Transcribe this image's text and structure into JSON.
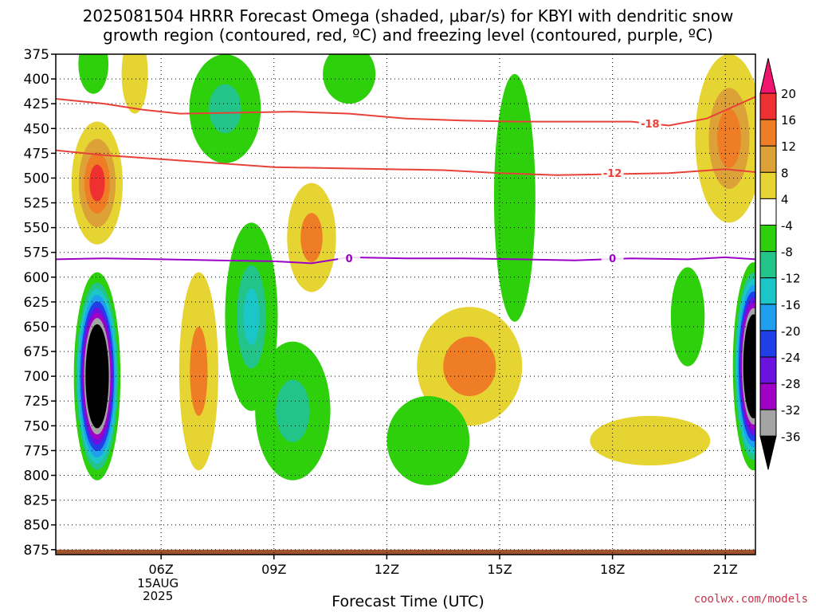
{
  "title": {
    "line1": "2025081504 HRRR Forecast Omega (shaded, μbar/s) for KBYI with dendritic snow",
    "line2": "growth region (contoured, red, ºC) and freezing level (contoured, purple, ºC)"
  },
  "credit": "coolwx.com/models",
  "chart_data": {
    "type": "heatmap",
    "title": "2025081504 HRRR Forecast Omega (shaded, μbar/s) for KBYI with dendritic snow growth region (contoured, red, ºC) and freezing level (contoured, purple, ºC)",
    "xlabel": "Forecast Time (UTC)",
    "ylabel": "",
    "x_range_hours_utc": [
      3.2,
      21.8
    ],
    "y_range_mb": [
      375,
      880
    ],
    "y_inverted": true,
    "grid": true,
    "y_ticks": [
      375,
      400,
      425,
      450,
      475,
      500,
      525,
      550,
      575,
      600,
      625,
      650,
      675,
      700,
      725,
      750,
      775,
      800,
      825,
      850,
      875
    ],
    "x_ticks": [
      {
        "hour": 6,
        "label": "06Z",
        "sub1": "15AUG",
        "sub2": "2025"
      },
      {
        "hour": 9,
        "label": "09Z"
      },
      {
        "hour": 12,
        "label": "12Z"
      },
      {
        "hour": 15,
        "label": "15Z"
      },
      {
        "hour": 18,
        "label": "18Z"
      },
      {
        "hour": 21,
        "label": "21Z"
      }
    ],
    "colorbar": {
      "labels": [
        "20",
        "16",
        "12",
        "8",
        "4",
        "-4",
        "-8",
        "-12",
        "-16",
        "-20",
        "-24",
        "-28",
        "-32",
        "-36"
      ],
      "bins": [
        {
          "from": 16,
          "to": 20,
          "color": "#ee3030"
        },
        {
          "from": 12,
          "to": 16,
          "color": "#ee7d25"
        },
        {
          "from": 8,
          "to": 12,
          "color": "#dca237"
        },
        {
          "from": 4,
          "to": 8,
          "color": "#e6d433"
        },
        {
          "from": -4,
          "to": 4,
          "color": "#ffffff"
        },
        {
          "from": -8,
          "to": -4,
          "color": "#2ed00b"
        },
        {
          "from": -12,
          "to": -8,
          "color": "#22c48a"
        },
        {
          "from": -16,
          "to": -12,
          "color": "#1bc6c9"
        },
        {
          "from": -20,
          "to": -16,
          "color": "#1ea0ee"
        },
        {
          "from": -24,
          "to": -20,
          "color": "#1f40e8"
        },
        {
          "from": -28,
          "to": -24,
          "color": "#6a13e0"
        },
        {
          "from": -32,
          "to": -28,
          "color": "#a000c8"
        },
        {
          "from": -36,
          "to": -32,
          "color": "#a4a4a4"
        }
      ],
      "top_arrow_color": "#f0146e",
      "bottom_arrow_color": "#000000"
    },
    "omega_features": [
      {
        "type": "ellipse",
        "hour": 4.3,
        "mb": 700,
        "rx_h": 0.62,
        "ry_mb": 105,
        "levels": [
          {
            "s": 1.0,
            "color": "#2ed00b"
          },
          {
            "s": 0.9,
            "color": "#22c48a"
          },
          {
            "s": 0.84,
            "color": "#1bc6c9"
          },
          {
            "s": 0.78,
            "color": "#1ea0ee"
          },
          {
            "s": 0.72,
            "color": "#1f40e8"
          },
          {
            "s": 0.66,
            "color": "#6a13e0"
          },
          {
            "s": 0.61,
            "color": "#a000c8"
          },
          {
            "s": 0.56,
            "color": "#a4a4a4"
          },
          {
            "s": 0.5,
            "color": "#000000"
          }
        ]
      },
      {
        "type": "ellipse",
        "hour": 21.75,
        "mb": 690,
        "rx_h": 0.55,
        "ry_mb": 105,
        "levels": [
          {
            "s": 1.0,
            "color": "#2ed00b"
          },
          {
            "s": 0.9,
            "color": "#22c48a"
          },
          {
            "s": 0.84,
            "color": "#1bc6c9"
          },
          {
            "s": 0.78,
            "color": "#1ea0ee"
          },
          {
            "s": 0.72,
            "color": "#1f40e8"
          },
          {
            "s": 0.66,
            "color": "#6a13e0"
          },
          {
            "s": 0.61,
            "color": "#a000c8"
          },
          {
            "s": 0.56,
            "color": "#a4a4a4"
          },
          {
            "s": 0.5,
            "color": "#000000"
          }
        ]
      },
      {
        "type": "ellipse",
        "hour": 4.3,
        "mb": 505,
        "rx_h": 0.68,
        "ry_mb": 62,
        "levels": [
          {
            "s": 1.0,
            "color": "#e6d433"
          },
          {
            "s": 0.72,
            "color": "#dca237"
          },
          {
            "s": 0.5,
            "color": "#ee7d25"
          },
          {
            "s": 0.3,
            "color": "#ee3030"
          }
        ]
      },
      {
        "type": "ellipse",
        "hour": 7.0,
        "mb": 695,
        "rx_h": 0.52,
        "ry_mb": 100,
        "levels": [
          {
            "s": 1.0,
            "color": "#e6d433"
          },
          {
            "s": 0.45,
            "color": "#ee7d25"
          }
        ]
      },
      {
        "type": "ellipse",
        "hour": 10.0,
        "mb": 560,
        "rx_h": 0.65,
        "ry_mb": 55,
        "levels": [
          {
            "s": 1.0,
            "color": "#e6d433"
          },
          {
            "s": 0.45,
            "color": "#ee7d25"
          }
        ]
      },
      {
        "type": "ellipse",
        "hour": 14.2,
        "mb": 690,
        "rx_h": 1.4,
        "ry_mb": 60,
        "levels": [
          {
            "s": 1.0,
            "color": "#e6d433"
          },
          {
            "s": 0.5,
            "color": "#ee7d25"
          }
        ]
      },
      {
        "type": "ellipse",
        "hour": 19.0,
        "mb": 765,
        "rx_h": 1.6,
        "ry_mb": 25,
        "levels": [
          {
            "s": 1.0,
            "color": "#e6d433"
          }
        ]
      },
      {
        "type": "ellipse",
        "hour": 21.1,
        "mb": 460,
        "rx_h": 0.9,
        "ry_mb": 85,
        "levels": [
          {
            "s": 1.0,
            "color": "#e6d433"
          },
          {
            "s": 0.6,
            "color": "#dca237"
          },
          {
            "s": 0.35,
            "color": "#ee7d25"
          }
        ]
      },
      {
        "type": "ellipse",
        "hour": 8.4,
        "mb": 640,
        "rx_h": 0.7,
        "ry_mb": 95,
        "levels": [
          {
            "s": 1.0,
            "color": "#2ed00b"
          },
          {
            "s": 0.55,
            "color": "#22c48a"
          },
          {
            "s": 0.3,
            "color": "#1bc6c9"
          }
        ]
      },
      {
        "type": "ellipse",
        "hour": 9.5,
        "mb": 735,
        "rx_h": 1.0,
        "ry_mb": 70,
        "levels": [
          {
            "s": 1.0,
            "color": "#2ed00b"
          },
          {
            "s": 0.45,
            "color": "#22c48a"
          }
        ]
      },
      {
        "type": "ellipse",
        "hour": 7.7,
        "mb": 430,
        "rx_h": 0.95,
        "ry_mb": 55,
        "levels": [
          {
            "s": 1.0,
            "color": "#2ed00b"
          },
          {
            "s": 0.45,
            "color": "#22c48a"
          }
        ]
      },
      {
        "type": "ellipse",
        "hour": 15.4,
        "mb": 520,
        "rx_h": 0.55,
        "ry_mb": 125,
        "levels": [
          {
            "s": 1.0,
            "color": "#2ed00b"
          }
        ]
      },
      {
        "type": "ellipse",
        "hour": 13.1,
        "mb": 765,
        "rx_h": 1.1,
        "ry_mb": 45,
        "levels": [
          {
            "s": 1.0,
            "color": "#2ed00b"
          }
        ]
      },
      {
        "type": "ellipse",
        "hour": 20.0,
        "mb": 640,
        "rx_h": 0.45,
        "ry_mb": 50,
        "levels": [
          {
            "s": 1.0,
            "color": "#2ed00b"
          }
        ]
      },
      {
        "type": "ellipse",
        "hour": 11.0,
        "mb": 395,
        "rx_h": 0.7,
        "ry_mb": 30,
        "levels": [
          {
            "s": 1.0,
            "color": "#2ed00b"
          }
        ]
      },
      {
        "type": "ellipse",
        "hour": 5.3,
        "mb": 395,
        "rx_h": 0.35,
        "ry_mb": 40,
        "levels": [
          {
            "s": 1.0,
            "color": "#e6d433"
          }
        ]
      },
      {
        "type": "ellipse",
        "hour": 4.2,
        "mb": 385,
        "rx_h": 0.4,
        "ry_mb": 30,
        "levels": [
          {
            "s": 1.0,
            "color": "#2ed00b"
          }
        ]
      }
    ],
    "contours": [
      {
        "name": "-18 ºC",
        "label": "-18",
        "color": "#e8413a",
        "x": [
          3.2,
          4.5,
          5.5,
          6.5,
          8,
          9.5,
          11,
          12.5,
          14,
          15.5,
          17,
          18.5,
          19.5,
          20.5,
          21.8
        ],
        "y": [
          420,
          425,
          431,
          435,
          434,
          433,
          435,
          440,
          442,
          443,
          443,
          443,
          447,
          440,
          418
        ],
        "label_hour": 19.0,
        "label_mb": 445
      },
      {
        "name": "-12 ºC",
        "label": "-12",
        "color": "#e8413a",
        "x": [
          3.2,
          4.5,
          6,
          7.5,
          9,
          10.5,
          12,
          13.5,
          15,
          16.5,
          18,
          19.5,
          21,
          21.8
        ],
        "y": [
          472,
          477,
          481,
          485,
          489,
          490,
          491,
          492,
          495,
          497,
          496,
          495,
          491,
          494
        ],
        "label_hour": 18.0,
        "label_mb": 495
      },
      {
        "name": "0 ºC",
        "label": "0",
        "color": "#9b00c8",
        "x": [
          3.2,
          4.5,
          6,
          7.5,
          9,
          10,
          11,
          12.5,
          14,
          15.5,
          17,
          18.5,
          20,
          21,
          21.8
        ],
        "y": [
          582,
          581,
          582,
          583,
          584,
          586,
          580,
          581,
          581,
          582,
          583,
          581,
          582,
          580,
          582
        ],
        "label_hour_list": [
          11.0,
          18.0
        ],
        "label_mb": 581
      }
    ],
    "ground": {
      "from_mb": 875,
      "to_mb": 880,
      "color": "#a0522d"
    }
  }
}
